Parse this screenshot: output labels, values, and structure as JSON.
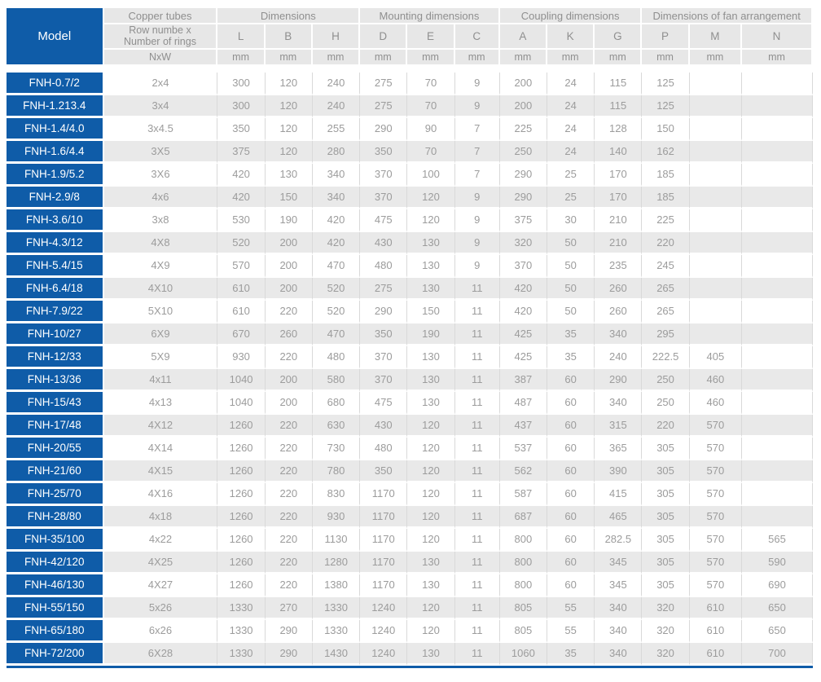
{
  "table": {
    "accent_color": "#0f5ca8",
    "stripe_color": "#e9e9e9",
    "header_bg_color": "#e7e7e7",
    "header": {
      "model_label": "Model",
      "groups": [
        {
          "label": "Copper tubes",
          "span": 1
        },
        {
          "label": "Dimensions",
          "span": 3
        },
        {
          "label": "Mounting dimensions",
          "span": 3
        },
        {
          "label": "Coupling dimensions",
          "span": 3
        },
        {
          "label": "Dimensions of fan arrangement",
          "span": 3
        }
      ],
      "row_label_line1": "Row numbe x",
      "row_label_line2": "Number of rings",
      "columns": [
        "L",
        "B",
        "H",
        "D",
        "E",
        "C",
        "A",
        "K",
        "G",
        "P",
        "M",
        "N"
      ],
      "first_unit": "NxW",
      "unit": "mm"
    },
    "rows": [
      {
        "model": "FNH-0.7/2",
        "nxw": "2x4",
        "values": [
          "300",
          "120",
          "240",
          "275",
          "70",
          "9",
          "200",
          "24",
          "115",
          "125",
          "",
          ""
        ]
      },
      {
        "model": "FNH-1.213.4",
        "nxw": "3x4",
        "values": [
          "300",
          "120",
          "240",
          "275",
          "70",
          "9",
          "200",
          "24",
          "115",
          "125",
          "",
          ""
        ]
      },
      {
        "model": "FNH-1.4/4.0",
        "nxw": "3x4.5",
        "values": [
          "350",
          "120",
          "255",
          "290",
          "90",
          "7",
          "225",
          "24",
          "128",
          "150",
          "",
          ""
        ]
      },
      {
        "model": "FNH-1.6/4.4",
        "nxw": "3X5",
        "values": [
          "375",
          "120",
          "280",
          "350",
          "70",
          "7",
          "250",
          "24",
          "140",
          "162",
          "",
          ""
        ]
      },
      {
        "model": "FNH-1.9/5.2",
        "nxw": "3X6",
        "values": [
          "420",
          "130",
          "340",
          "370",
          "100",
          "7",
          "290",
          "25",
          "170",
          "185",
          "",
          ""
        ]
      },
      {
        "model": "FNH-2.9/8",
        "nxw": "4x6",
        "values": [
          "420",
          "150",
          "340",
          "370",
          "120",
          "9",
          "290",
          "25",
          "170",
          "185",
          "",
          ""
        ]
      },
      {
        "model": "FNH-3.6/10",
        "nxw": "3x8",
        "values": [
          "530",
          "190",
          "420",
          "475",
          "120",
          "9",
          "375",
          "30",
          "210",
          "225",
          "",
          ""
        ]
      },
      {
        "model": "FNH-4.3/12",
        "nxw": "4X8",
        "values": [
          "520",
          "200",
          "420",
          "430",
          "130",
          "9",
          "320",
          "50",
          "210",
          "220",
          "",
          ""
        ]
      },
      {
        "model": "FNH-5.4/15",
        "nxw": "4X9",
        "values": [
          "570",
          "200",
          "470",
          "480",
          "130",
          "9",
          "370",
          "50",
          "235",
          "245",
          "",
          ""
        ]
      },
      {
        "model": "FNH-6.4/18",
        "nxw": "4X10",
        "values": [
          "610",
          "200",
          "520",
          "275",
          "130",
          "11",
          "420",
          "50",
          "260",
          "265",
          "",
          ""
        ]
      },
      {
        "model": "FNH-7.9/22",
        "nxw": "5X10",
        "values": [
          "610",
          "220",
          "520",
          "290",
          "150",
          "11",
          "420",
          "50",
          "260",
          "265",
          "",
          ""
        ]
      },
      {
        "model": "FNH-10/27",
        "nxw": "6X9",
        "values": [
          "670",
          "260",
          "470",
          "350",
          "190",
          "11",
          "425",
          "35",
          "340",
          "295",
          "",
          ""
        ]
      },
      {
        "model": "FNH-12/33",
        "nxw": "5X9",
        "values": [
          "930",
          "220",
          "480",
          "370",
          "130",
          "11",
          "425",
          "35",
          "240",
          "222.5",
          "405",
          ""
        ]
      },
      {
        "model": "FNH-13/36",
        "nxw": "4x11",
        "values": [
          "1040",
          "200",
          "580",
          "370",
          "130",
          "11",
          "387",
          "60",
          "290",
          "250",
          "460",
          ""
        ]
      },
      {
        "model": "FNH-15/43",
        "nxw": "4x13",
        "values": [
          "1040",
          "200",
          "680",
          "475",
          "130",
          "11",
          "487",
          "60",
          "340",
          "250",
          "460",
          ""
        ]
      },
      {
        "model": "FNH-17/48",
        "nxw": "4X12",
        "values": [
          "1260",
          "220",
          "630",
          "430",
          "120",
          "11",
          "437",
          "60",
          "315",
          "220",
          "570",
          ""
        ]
      },
      {
        "model": "FNH-20/55",
        "nxw": "4X14",
        "values": [
          "1260",
          "220",
          "730",
          "480",
          "120",
          "11",
          "537",
          "60",
          "365",
          "305",
          "570",
          ""
        ]
      },
      {
        "model": "FNH-21/60",
        "nxw": "4X15",
        "values": [
          "1260",
          "220",
          "780",
          "350",
          "120",
          "11",
          "562",
          "60",
          "390",
          "305",
          "570",
          ""
        ]
      },
      {
        "model": "FNH-25/70",
        "nxw": "4X16",
        "values": [
          "1260",
          "220",
          "830",
          "1170",
          "120",
          "11",
          "587",
          "60",
          "415",
          "305",
          "570",
          ""
        ]
      },
      {
        "model": "FNH-28/80",
        "nxw": "4x18",
        "values": [
          "1260",
          "220",
          "930",
          "1170",
          "120",
          "11",
          "687",
          "60",
          "465",
          "305",
          "570",
          ""
        ]
      },
      {
        "model": "FNH-35/100",
        "nxw": "4x22",
        "values": [
          "1260",
          "220",
          "1130",
          "1170",
          "120",
          "11",
          "800",
          "60",
          "282.5",
          "305",
          "570",
          "565"
        ]
      },
      {
        "model": "FNH-42/120",
        "nxw": "4X25",
        "values": [
          "1260",
          "220",
          "1280",
          "1170",
          "130",
          "11",
          "800",
          "60",
          "345",
          "305",
          "570",
          "590"
        ]
      },
      {
        "model": "FNH-46/130",
        "nxw": "4X27",
        "values": [
          "1260",
          "220",
          "1380",
          "1170",
          "130",
          "11",
          "800",
          "60",
          "345",
          "305",
          "570",
          "690"
        ]
      },
      {
        "model": "FNH-55/150",
        "nxw": "5x26",
        "values": [
          "1330",
          "270",
          "1330",
          "1240",
          "120",
          "11",
          "805",
          "55",
          "340",
          "320",
          "610",
          "650"
        ]
      },
      {
        "model": "FNH-65/180",
        "nxw": "6x26",
        "values": [
          "1330",
          "290",
          "1330",
          "1240",
          "120",
          "11",
          "805",
          "55",
          "340",
          "320",
          "610",
          "650"
        ]
      },
      {
        "model": "FNH-72/200",
        "nxw": "6X28",
        "values": [
          "1330",
          "290",
          "1430",
          "1240",
          "130",
          "11",
          "1060",
          "35",
          "340",
          "320",
          "610",
          "700"
        ]
      }
    ]
  }
}
